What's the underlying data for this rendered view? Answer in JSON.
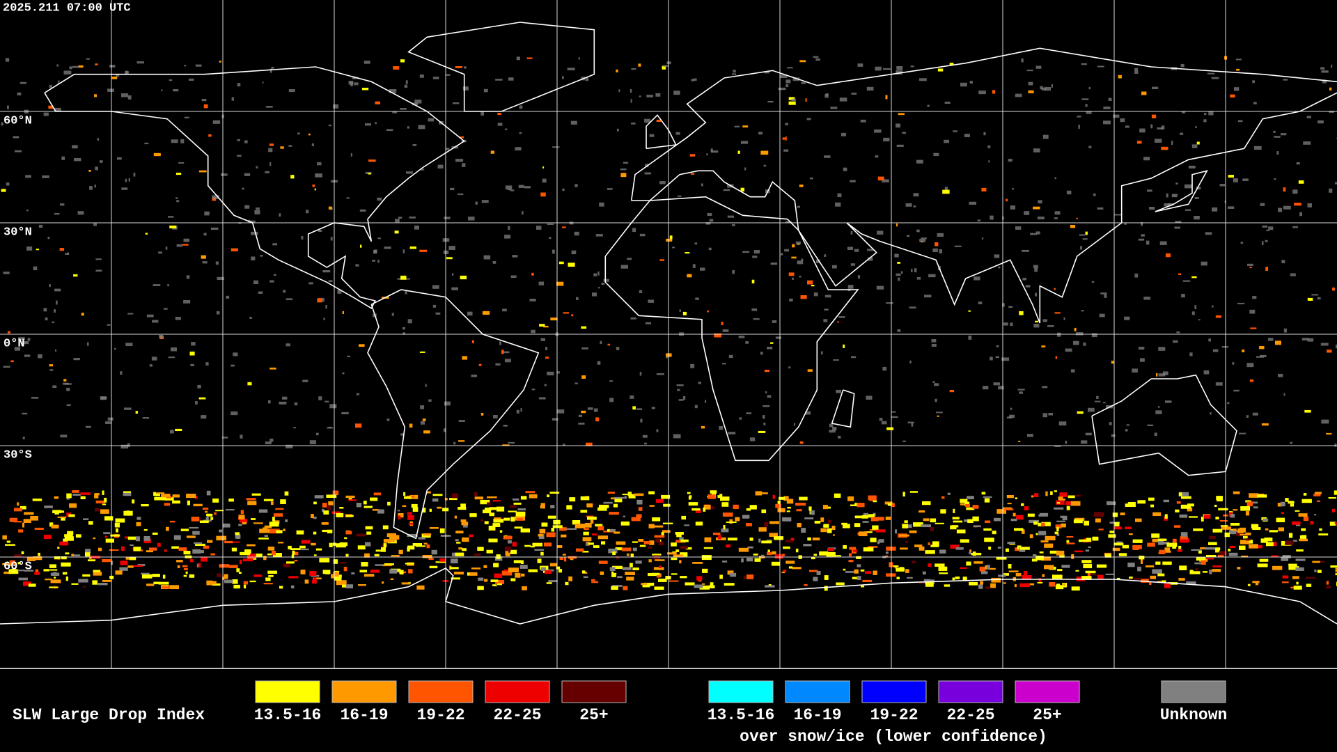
{
  "timestamp": "2025.211 07:00 UTC",
  "latitude_labels": [
    "60°N",
    "30°N",
    "0°N",
    "30°S",
    "60°S"
  ],
  "legend": {
    "title": "SLW Large Drop Index",
    "items": [
      {
        "label": "13.5-16",
        "color": "#ffff00"
      },
      {
        "label": "16-19",
        "color": "#ff9900"
      },
      {
        "label": "19-22",
        "color": "#ff5500"
      },
      {
        "label": "22-25",
        "color": "#ee0000"
      },
      {
        "label": "25+",
        "color": "#660000"
      }
    ],
    "snow_items": [
      {
        "label": "13.5-16",
        "color": "#00ffff"
      },
      {
        "label": "16-19",
        "color": "#0088ff"
      },
      {
        "label": "19-22",
        "color": "#0000ff"
      },
      {
        "label": "22-25",
        "color": "#7700dd"
      },
      {
        "label": "25+",
        "color": "#cc00cc"
      }
    ],
    "snow_note": "over snow/ice (lower confidence)",
    "unknown": {
      "label": "Unknown",
      "color": "#808080"
    }
  }
}
